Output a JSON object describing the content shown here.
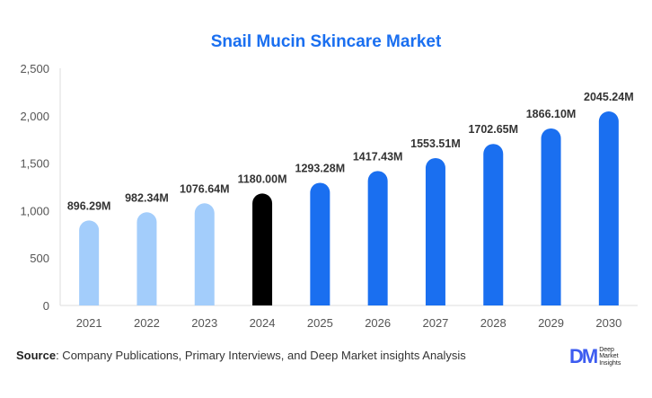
{
  "chart_data": {
    "type": "bar",
    "title": "Snail Mucin Skincare Market",
    "categories": [
      "2021",
      "2022",
      "2023",
      "2024",
      "2025",
      "2026",
      "2027",
      "2028",
      "2029",
      "2030"
    ],
    "values": [
      896.29,
      982.34,
      1076.64,
      1180.0,
      1293.28,
      1417.43,
      1553.51,
      1702.65,
      1866.1,
      2045.24
    ],
    "data_labels": [
      "896.29M",
      "982.34M",
      "1076.64M",
      "1180.00M",
      "1293.28M",
      "1417.43M",
      "1553.51M",
      "1702.65M",
      "1866.10M",
      "2045.24M"
    ],
    "bar_colors": [
      "#a3cdfb",
      "#a3cdfb",
      "#a3cdfb",
      "#000000",
      "#1a6ff0",
      "#1a6ff0",
      "#1a6ff0",
      "#1a6ff0",
      "#1a6ff0",
      "#1a6ff0"
    ],
    "yticks": [
      0,
      500,
      1000,
      1500,
      2000,
      2500
    ],
    "ytick_labels": [
      "0",
      "500",
      "1,000",
      "1,500",
      "2,000",
      "2,500"
    ],
    "ylim": [
      0,
      2500
    ],
    "xlabel": "",
    "ylabel": "",
    "grid": false
  },
  "footer": {
    "source_label": "Source",
    "source_text": ": Company Publications, Primary Interviews, and Deep Market insights Analysis",
    "logo_mark": "DM",
    "logo_text": "Deep Market Insights"
  }
}
